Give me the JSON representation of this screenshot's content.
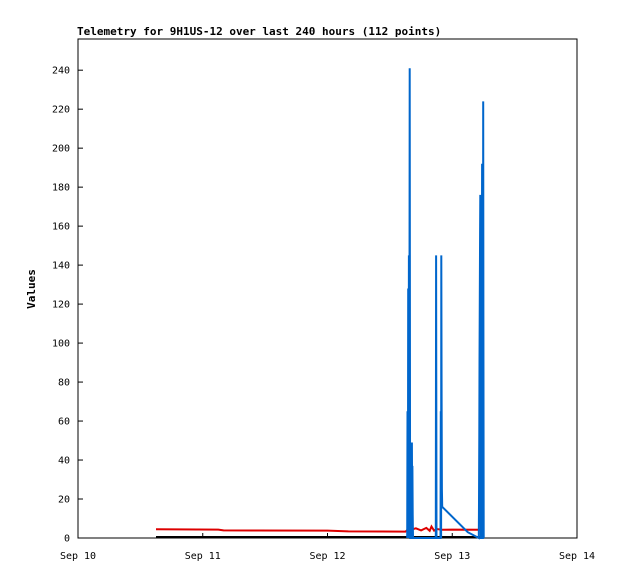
{
  "chart_data": {
    "type": "line",
    "title": "Telemetry for 9H1US-12 over last 240 hours (112 points)",
    "ylabel": "Values",
    "xlabel": "",
    "x_ticks": [
      "Sep 10",
      "Sep 11",
      "Sep 12",
      "Sep 13",
      "Sep 14"
    ],
    "x_range": [
      "Sep 10 00:00",
      "Sep 14 00:00"
    ],
    "y_ticks": [
      0,
      20,
      40,
      60,
      80,
      100,
      120,
      140,
      160,
      180,
      200,
      220,
      240
    ],
    "ylim": [
      0,
      256
    ],
    "grid": false,
    "legend": "none",
    "series": [
      {
        "color": "#0066cc",
        "points": [
          [
            "Sep 12 15:20",
            0
          ],
          [
            "Sep 12 15:24",
            65
          ],
          [
            "Sep 12 15:28",
            0
          ],
          [
            "Sep 12 15:32",
            128
          ],
          [
            "Sep 12 15:36",
            0
          ],
          [
            "Sep 12 15:40",
            145
          ],
          [
            "Sep 12 15:44",
            0
          ],
          [
            "Sep 12 15:49",
            241
          ],
          [
            "Sep 12 15:53",
            0
          ],
          [
            "Sep 12 16:10",
            0
          ],
          [
            "Sep 12 16:14",
            49
          ],
          [
            "Sep 12 16:17",
            25
          ],
          [
            "Sep 12 16:20",
            37
          ],
          [
            "Sep 12 16:24",
            12
          ],
          [
            "Sep 12 16:27",
            0
          ],
          [
            "Sep 12 20:50",
            0
          ],
          [
            "Sep 12 20:54",
            145
          ],
          [
            "Sep 12 20:58",
            0
          ],
          [
            "Sep 12 21:44",
            0
          ],
          [
            "Sep 12 21:48",
            65
          ],
          [
            "Sep 12 21:51",
            0
          ],
          [
            "Sep 12 21:54",
            145
          ],
          [
            "Sep 12 21:57",
            73
          ],
          [
            "Sep 12 22:00",
            25
          ],
          [
            "Sep 12 22:04",
            16
          ],
          [
            "Sep 13 03:00",
            3
          ],
          [
            "Sep 13 05:06",
            0
          ],
          [
            "Sep 13 05:09",
            18
          ],
          [
            "Sep 13 05:12",
            53
          ],
          [
            "Sep 13 05:15",
            89
          ],
          [
            "Sep 13 05:18",
            124
          ],
          [
            "Sep 13 05:21",
            158
          ],
          [
            "Sep 13 05:24",
            176
          ],
          [
            "Sep 13 05:28",
            145
          ],
          [
            "Sep 13 05:31",
            0
          ],
          [
            "Sep 13 05:36",
            0
          ],
          [
            "Sep 13 05:40",
            97
          ],
          [
            "Sep 13 05:44",
            192
          ],
          [
            "Sep 13 05:48",
            0
          ],
          [
            "Sep 13 05:54",
            0
          ],
          [
            "Sep 13 05:57",
            224
          ],
          [
            "Sep 13 06:00",
            113
          ],
          [
            "Sep 13 06:03",
            0
          ]
        ]
      },
      {
        "color": "#dd0000",
        "points": [
          [
            "Sep 10 15:00",
            4.5
          ],
          [
            "Sep 11 03:00",
            4.3
          ],
          [
            "Sep 11 04:00",
            3.9
          ],
          [
            "Sep 12 00:00",
            3.8
          ],
          [
            "Sep 12 04:00",
            3.4
          ],
          [
            "Sep 12 15:00",
            3.3
          ],
          [
            "Sep 12 15:40",
            4.8
          ],
          [
            "Sep 12 16:00",
            4.2
          ],
          [
            "Sep 12 17:00",
            5.0
          ],
          [
            "Sep 12 18:00",
            3.9
          ],
          [
            "Sep 12 19:00",
            5.2
          ],
          [
            "Sep 12 19:40",
            3.7
          ],
          [
            "Sep 12 20:00",
            5.9
          ],
          [
            "Sep 12 20:30",
            3.8
          ],
          [
            "Sep 12 21:00",
            4.6
          ],
          [
            "Sep 12 22:00",
            4.2
          ],
          [
            "Sep 13 00:00",
            4.3
          ],
          [
            "Sep 13 06:00",
            4.2
          ]
        ]
      },
      {
        "color": "#000000",
        "points": [
          [
            "Sep 10 15:00",
            0.5
          ],
          [
            "Sep 13 06:00",
            0.5
          ]
        ]
      }
    ]
  }
}
